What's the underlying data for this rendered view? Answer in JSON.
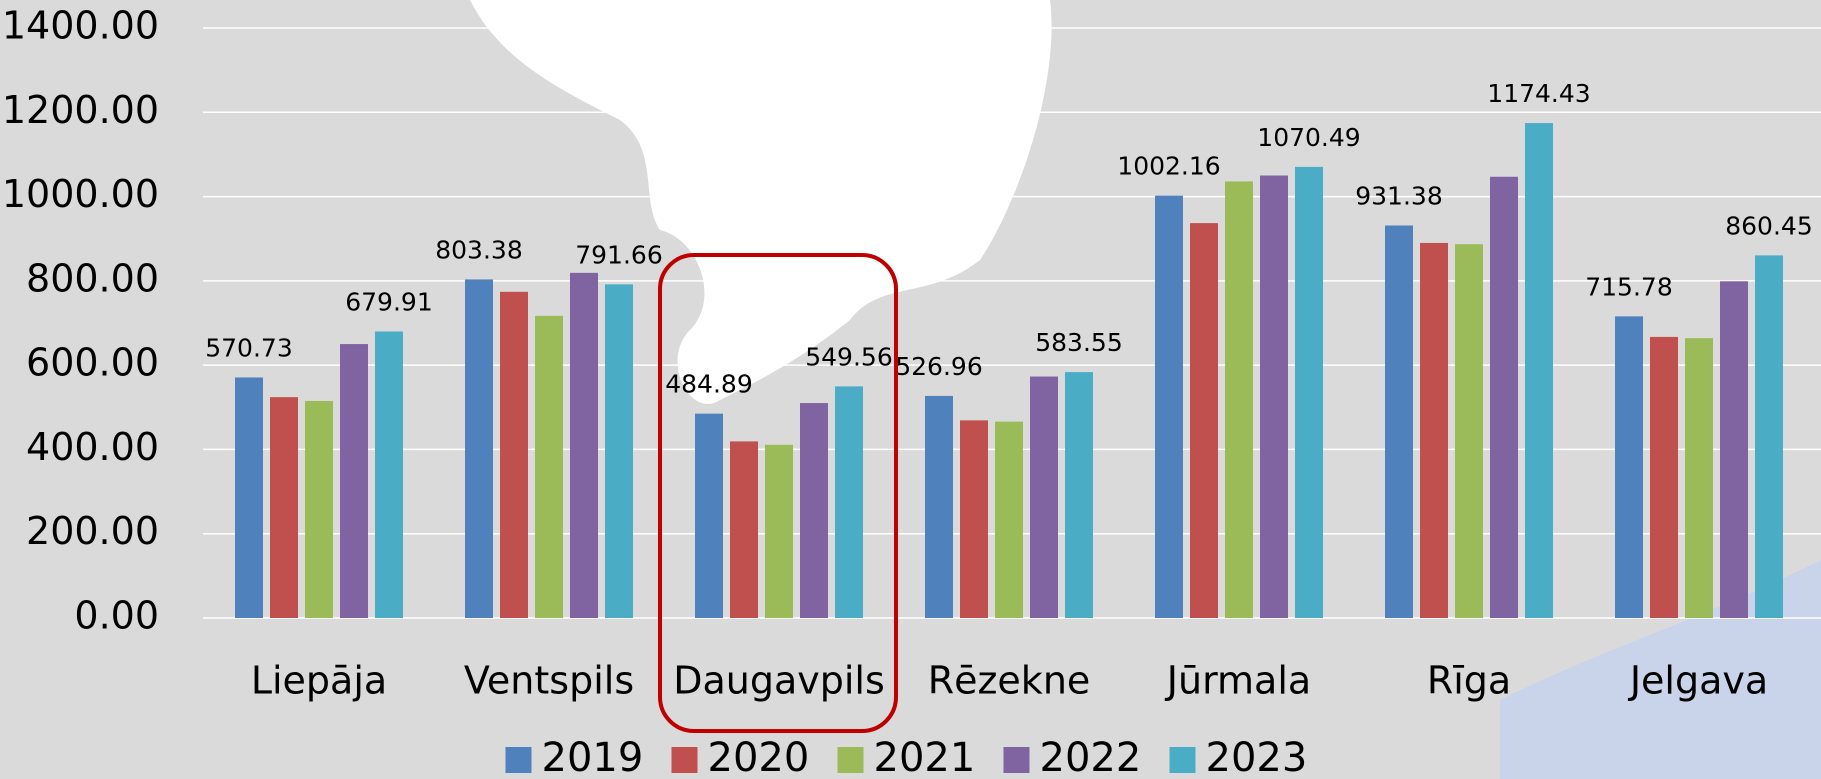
{
  "chart_data": {
    "type": "bar",
    "categories": [
      "Liepāja",
      "Ventspils",
      "Daugavpils",
      "Rēzekne",
      "Jūrmala",
      "Rīga",
      "Jelgava"
    ],
    "series": [
      {
        "name": "2019",
        "color": "#4f81bd",
        "labels": true,
        "values": [
          570.73,
          803.38,
          484.89,
          526.96,
          1002.16,
          931.38,
          715.78
        ]
      },
      {
        "name": "2020",
        "color": "#c0504d",
        "labels": false,
        "values": [
          524,
          774,
          419,
          469,
          937,
          890,
          667
        ]
      },
      {
        "name": "2021",
        "color": "#9bbb59",
        "labels": false,
        "values": [
          515,
          717,
          411,
          466,
          1036,
          887,
          664
        ]
      },
      {
        "name": "2022",
        "color": "#8064a2",
        "labels": false,
        "values": [
          650,
          819,
          510,
          573,
          1050,
          1047,
          799
        ]
      },
      {
        "name": "2023",
        "color": "#4bacc6",
        "labels": true,
        "values": [
          679.91,
          791.66,
          549.56,
          583.55,
          1070.49,
          1174.43,
          860.45
        ]
      }
    ],
    "ylim": [
      0,
      1400
    ],
    "yticks": [
      {
        "value": 0,
        "label": "0.00"
      },
      {
        "value": 200,
        "label": "200.00"
      },
      {
        "value": 400,
        "label": "400.00"
      },
      {
        "value": 600,
        "label": "600.00"
      },
      {
        "value": 800,
        "label": "800.00"
      },
      {
        "value": 1000,
        "label": "1000.00"
      },
      {
        "value": 1200,
        "label": "1200.00"
      },
      {
        "value": 1400,
        "label": "1400.00"
      }
    ],
    "grid": true,
    "legend": "bottom"
  }
}
